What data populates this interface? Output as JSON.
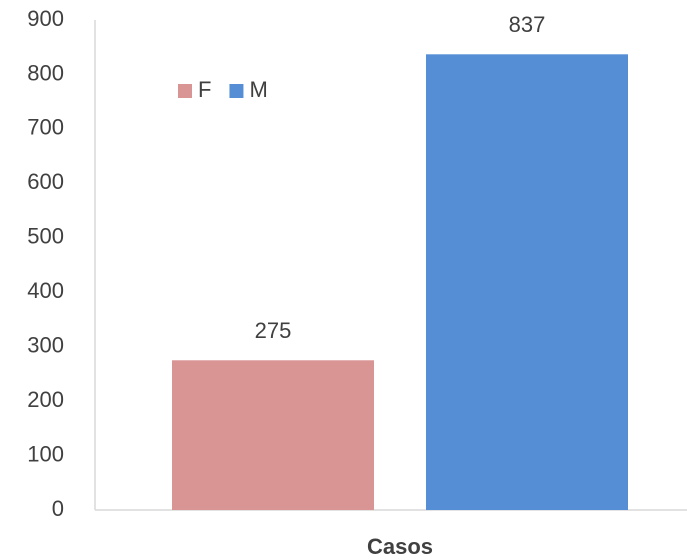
{
  "chart_data": {
    "type": "bar",
    "x_label": "Casos",
    "categories": [
      "Casos"
    ],
    "series": [
      {
        "name": "F",
        "color": "#d99594",
        "values": [
          275
        ]
      },
      {
        "name": "M",
        "color": "#558ed5",
        "values": [
          837
        ]
      }
    ],
    "ylim": [
      0,
      900
    ],
    "yticks": [
      0,
      100,
      200,
      300,
      400,
      500,
      600,
      700,
      800,
      900
    ],
    "grid": false,
    "legend": "top-left",
    "data_labels": true
  }
}
